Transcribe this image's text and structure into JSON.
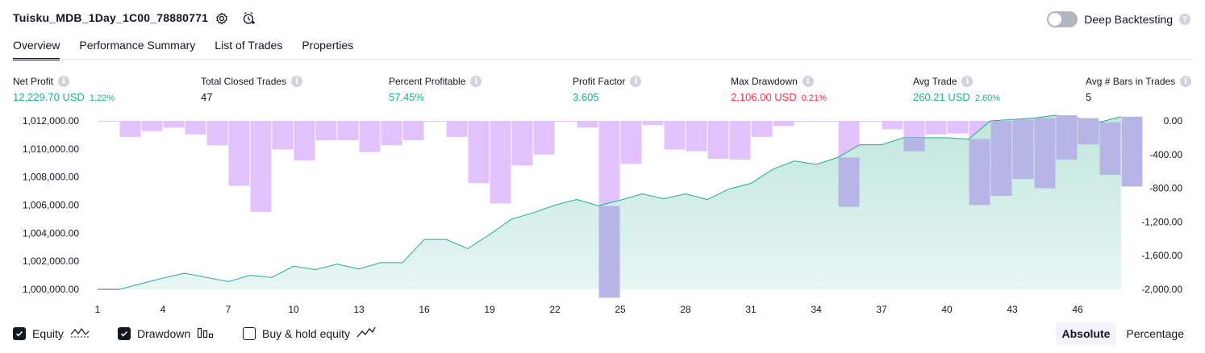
{
  "header": {
    "title": "Tuisku_MDB_1Day_1C00_78880771",
    "deep_backtesting_label": "Deep Backtesting",
    "deep_backtesting_on": false
  },
  "tabs": [
    {
      "label": "Overview",
      "active": true
    },
    {
      "label": "Performance Summary",
      "active": false
    },
    {
      "label": "List of Trades",
      "active": false
    },
    {
      "label": "Properties",
      "active": false
    }
  ],
  "metrics": {
    "net_profit": {
      "label": "Net Profit",
      "value": "12,229.70 USD",
      "pct": "1.22%"
    },
    "total_closed_trades": {
      "label": "Total Closed Trades",
      "value": "47"
    },
    "percent_profitable": {
      "label": "Percent Profitable",
      "value": "57.45%"
    },
    "profit_factor": {
      "label": "Profit Factor",
      "value": "3.605"
    },
    "max_drawdown": {
      "label": "Max Drawdown",
      "value": "2,106.00 USD",
      "pct": "0.21%"
    },
    "avg_trade": {
      "label": "Avg Trade",
      "value": "260.21 USD",
      "pct": "2.60%"
    },
    "avg_bars": {
      "label": "Avg # Bars in Trades",
      "value": "5"
    }
  },
  "colors": {
    "profit": "#22ab94",
    "loss": "#f23645",
    "drawdown_bar": "#e1c2fc",
    "drawdown_overlap": "#b6b5e6",
    "equity_line": "#22ab94",
    "equity_fill": "#d4efe8"
  },
  "chart_data": {
    "type": "area",
    "x_ticks": [
      1,
      4,
      7,
      10,
      13,
      16,
      19,
      22,
      25,
      28,
      31,
      34,
      37,
      40,
      43,
      46
    ],
    "left_axis": {
      "ticks": [
        "1,012,000.00",
        "1,010,000.00",
        "1,008,000.00",
        "1,006,000.00",
        "1,004,000.00",
        "1,002,000.00",
        "1,000,000.00"
      ],
      "ylim": [
        1000000,
        1012000
      ]
    },
    "right_axis": {
      "ticks": [
        "0.00",
        "-400.00",
        "-800.00",
        "-1,200.00",
        "-1,600.00",
        "-2,000.00"
      ],
      "ylim": [
        -2000,
        0
      ]
    },
    "series": [
      {
        "name": "Equity",
        "x": [
          1,
          2,
          3,
          4,
          5,
          6,
          7,
          8,
          9,
          10,
          11,
          12,
          13,
          14,
          15,
          16,
          17,
          18,
          19,
          20,
          21,
          22,
          23,
          24,
          25,
          26,
          27,
          28,
          29,
          30,
          31,
          32,
          33,
          34,
          35,
          36,
          37,
          38,
          39,
          40,
          41,
          42,
          43,
          44,
          45,
          46,
          47,
          48
        ],
        "values": [
          1000000,
          1000000,
          1000400,
          1000800,
          1001150,
          1000850,
          1000550,
          1001000,
          1000850,
          1001650,
          1001400,
          1001800,
          1001450,
          1001900,
          1001900,
          1003550,
          1003550,
          1002900,
          1003900,
          1005000,
          1005450,
          1006000,
          1006400,
          1005950,
          1006350,
          1006800,
          1006450,
          1006800,
          1006400,
          1007150,
          1007550,
          1008550,
          1009150,
          1008900,
          1009400,
          1010300,
          1010300,
          1010800,
          1010800,
          1010800,
          1010700,
          1012000,
          1012100,
          1012200,
          1012400,
          1012200,
          1011900,
          1012300
        ]
      },
      {
        "name": "Drawdown",
        "x": [
          1,
          2,
          3,
          4,
          5,
          6,
          7,
          8,
          9,
          10,
          11,
          12,
          13,
          14,
          15,
          16,
          17,
          18,
          19,
          20,
          21,
          22,
          23,
          24,
          25,
          26,
          27,
          28,
          29,
          30,
          31,
          32,
          33,
          34,
          35,
          36,
          37,
          38,
          39,
          40,
          41,
          42,
          43,
          44,
          45,
          46,
          47,
          48
        ],
        "values": [
          0,
          -190,
          -120,
          -80,
          -160,
          -290,
          -770,
          -1080,
          -340,
          -470,
          -230,
          -230,
          -370,
          -290,
          -230,
          -10,
          -190,
          -740,
          -980,
          -530,
          -400,
          -10,
          -80,
          -2100,
          -510,
          -50,
          -340,
          -360,
          -450,
          -460,
          -190,
          -60,
          -10,
          -10,
          -1020,
          -10,
          -100,
          -360,
          -160,
          -150,
          -1000,
          -890,
          -690,
          -800,
          -460,
          -280,
          -640,
          -780
        ]
      },
      {
        "name": "Buy & hold equity",
        "values": []
      }
    ]
  },
  "legend": [
    {
      "label": "Equity",
      "checked": true,
      "icon": "equity-icon"
    },
    {
      "label": "Drawdown",
      "checked": true,
      "icon": "drawdown-icon"
    },
    {
      "label": "Buy & hold equity",
      "checked": false,
      "icon": "buy-hold-icon"
    }
  ],
  "modes": {
    "absolute": "Absolute",
    "percentage": "Percentage",
    "active": "absolute"
  }
}
